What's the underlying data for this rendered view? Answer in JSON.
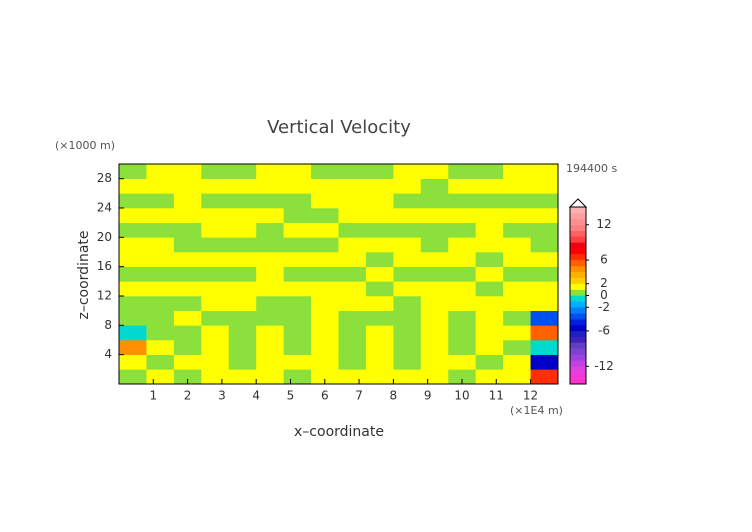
{
  "chart_data": {
    "type": "contour",
    "title": "Vertical Velocity",
    "x_label": "x–coordinate",
    "y_label": "z–coordinate",
    "x_unit": "(×1E4 m)",
    "y_unit": "(×1000 m)",
    "time_label": "194400 s",
    "xlim": [
      0,
      12.8
    ],
    "ylim": [
      0,
      30
    ],
    "xticks": [
      1,
      2,
      3,
      4,
      5,
      6,
      7,
      8,
      9,
      10,
      11,
      12
    ],
    "yticks": [
      4,
      8,
      12,
      16,
      20,
      24,
      28
    ],
    "field": {
      "x": [
        0.4,
        1.2,
        2.0,
        2.8,
        3.6,
        4.4,
        5.2,
        6.0,
        6.8,
        7.6,
        8.4,
        9.2,
        10.0,
        10.8,
        11.6,
        12.4
      ],
      "z": [
        1,
        3,
        5,
        7,
        9,
        11,
        13,
        15,
        17,
        19,
        21,
        23,
        25,
        27,
        29
      ],
      "values": [
        [
          0.5,
          1.5,
          0.5,
          1.5,
          1.5,
          1.5,
          0.5,
          1.5,
          1.5,
          1.5,
          1.5,
          1.5,
          0.5,
          1.5,
          1.5,
          6
        ],
        [
          1.5,
          0.5,
          1.5,
          1.5,
          0.5,
          1.5,
          1.5,
          1.5,
          0.5,
          1.5,
          0.5,
          1.5,
          1.5,
          0.5,
          1.5,
          -6
        ],
        [
          4,
          1.5,
          0.5,
          1.5,
          0.5,
          1.5,
          0.5,
          1.5,
          0.5,
          1.5,
          0.5,
          1.5,
          0.5,
          1.5,
          0.5,
          -1
        ],
        [
          -0.5,
          0.5,
          0.5,
          1.5,
          0.5,
          1.5,
          0.5,
          1.5,
          0.5,
          1.5,
          0.5,
          1.5,
          0.5,
          1.5,
          1.5,
          5
        ],
        [
          0.5,
          0.5,
          1.5,
          0.5,
          0.5,
          0.5,
          0.5,
          1.5,
          0.5,
          0.5,
          0.5,
          1.5,
          0.5,
          1.5,
          0.5,
          -4
        ],
        [
          0.5,
          0.5,
          0.5,
          1.5,
          1.5,
          0.5,
          0.5,
          1.5,
          1.5,
          1.5,
          0.5,
          1.5,
          1.5,
          1.5,
          1.5,
          1.5
        ],
        [
          1.5,
          1.5,
          1.5,
          1.5,
          1.5,
          1.5,
          1.5,
          1.5,
          1.5,
          0.5,
          1.5,
          1.5,
          1.5,
          0.5,
          1.5,
          1.5
        ],
        [
          0.5,
          0.5,
          0.5,
          0.5,
          0.5,
          1.5,
          0.5,
          0.5,
          0.5,
          1.5,
          0.5,
          0.5,
          0.5,
          1.5,
          0.5,
          0.5
        ],
        [
          1.5,
          1.5,
          1.5,
          1.5,
          1.5,
          1.5,
          1.5,
          1.5,
          1.5,
          0.5,
          1.5,
          1.5,
          1.5,
          0.5,
          1.5,
          1.5
        ],
        [
          1.5,
          1.5,
          0.5,
          0.5,
          0.5,
          0.5,
          0.5,
          0.5,
          1.5,
          1.5,
          1.5,
          0.5,
          1.5,
          1.5,
          1.5,
          0.5
        ],
        [
          0.5,
          0.5,
          0.5,
          1.5,
          1.5,
          0.5,
          1.5,
          1.5,
          0.5,
          0.5,
          0.5,
          0.5,
          0.5,
          1.5,
          0.5,
          0.5
        ],
        [
          1.5,
          1.5,
          1.5,
          1.5,
          1.5,
          1.5,
          0.5,
          0.5,
          1.5,
          1.5,
          1.5,
          1.5,
          1.5,
          1.5,
          1.5,
          1.5
        ],
        [
          0.5,
          0.5,
          1.5,
          0.5,
          0.5,
          0.5,
          0.5,
          1.5,
          1.5,
          1.5,
          0.5,
          0.5,
          0.5,
          0.5,
          0.5,
          0.5
        ],
        [
          1.5,
          1.5,
          1.5,
          1.5,
          1.5,
          1.5,
          1.5,
          1.5,
          1.5,
          1.5,
          1.5,
          0.5,
          1.5,
          1.5,
          1.5,
          1.5
        ],
        [
          0.5,
          1.5,
          1.5,
          0.5,
          0.5,
          1.5,
          1.5,
          0.5,
          0.5,
          0.5,
          1.5,
          1.5,
          0.5,
          0.5,
          1.5,
          1.5
        ]
      ]
    },
    "colorbar": {
      "edges": [
        -15,
        -14,
        -13,
        -12,
        -11,
        -10,
        -9,
        -8,
        -7,
        -6,
        -5,
        -4,
        -3,
        -2,
        -1,
        0,
        1,
        2,
        3,
        4,
        5,
        6,
        7,
        8,
        9,
        10,
        11,
        12,
        13,
        14,
        15
      ],
      "colors": [
        "#ff33cc",
        "#f038d8",
        "#e040e0",
        "#c040e0",
        "#a040e0",
        "#8040d0",
        "#6040c0",
        "#4020c0",
        "#2020c0",
        "#0000c8",
        "#0020e0",
        "#0050f0",
        "#0080ff",
        "#00b0ff",
        "#00d8d0",
        "#8ce03c",
        "#ffff00",
        "#ffd000",
        "#ffb000",
        "#ff9000",
        "#ff6000",
        "#ff3000",
        "#ff0000",
        "#f00010",
        "#ff4040",
        "#ff6060",
        "#ff8080",
        "#ff9090",
        "#ffa0a0",
        "#ffb0b0"
      ],
      "ticks": [
        12,
        6,
        2,
        0,
        -2,
        -6,
        -12
      ]
    }
  }
}
